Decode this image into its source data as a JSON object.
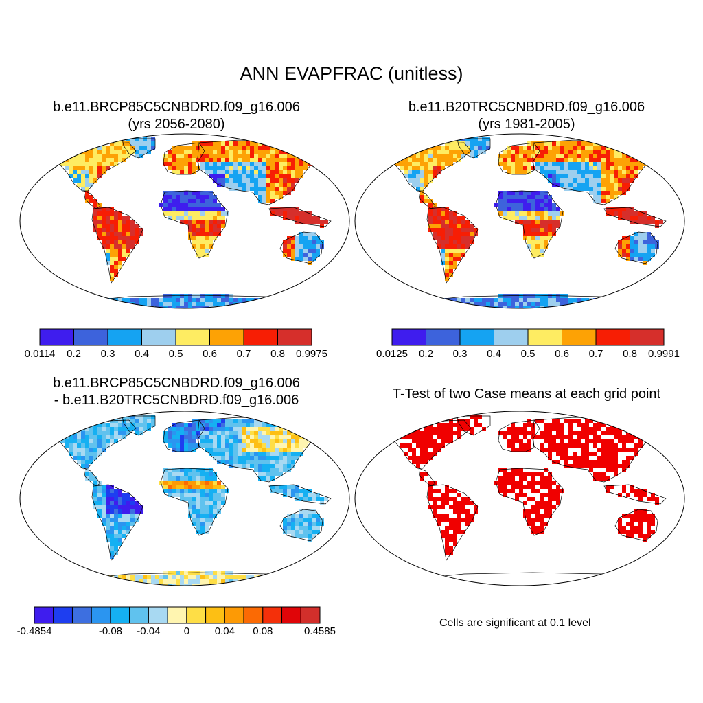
{
  "main_title": "ANN EVAPFRAC (unitless)",
  "panels": [
    {
      "id": "case1",
      "title_line1": "b.e11.BRCP85C5CNBDRD.f09_g16.006",
      "title_line2": "(yrs 2056-2080)",
      "field": "evapfrac",
      "colorbar": {
        "colors": [
          "#3f1dee",
          "#3d63dc",
          "#15a3f2",
          "#9ecfee",
          "#feec62",
          "#fda205",
          "#f71e04",
          "#d62f2b"
        ],
        "labels": [
          "0.0114",
          "0.2",
          "0.3",
          "0.4",
          "0.5",
          "0.6",
          "0.7",
          "0.8",
          "0.9975"
        ]
      }
    },
    {
      "id": "case2",
      "title_line1": "b.e11.B20TRC5CNBDRD.f09_g16.006",
      "title_line2": "(yrs 1981-2005)",
      "field": "evapfrac",
      "colorbar": {
        "colors": [
          "#3f1dee",
          "#3d63dc",
          "#15a3f2",
          "#9ecfee",
          "#feec62",
          "#fda205",
          "#f71e04",
          "#d62f2b"
        ],
        "labels": [
          "0.0125",
          "0.2",
          "0.3",
          "0.4",
          "0.5",
          "0.6",
          "0.7",
          "0.8",
          "0.9991"
        ]
      }
    },
    {
      "id": "diff",
      "title_line1": "b.e11.BRCP85C5CNBDRD.f09_g16.006",
      "title_line2": "- b.e11.B20TRC5CNBDRD.f09_g16.006",
      "field": "difference",
      "colorbar": {
        "colors": [
          "#3f1dee",
          "#1e3ef0",
          "#3d6fe0",
          "#2b95f0",
          "#15b0f2",
          "#60c2ee",
          "#a8d9f2",
          "#fff5b0",
          "#fede46",
          "#fdbf14",
          "#fd9a05",
          "#fb6a04",
          "#f4300a",
          "#e00508",
          "#d22f2b"
        ],
        "labels": [
          "-0.4854",
          "-0.08",
          "-0.04",
          "0",
          "0.04",
          "0.08",
          "0.4585"
        ],
        "label_slots": [
          0,
          4,
          6,
          8,
          10,
          12,
          15
        ]
      }
    },
    {
      "id": "ttest",
      "title_line1": "T-Test of two Case means at each grid point",
      "title_line2": "",
      "field": "significance",
      "significance_color": "#f00000",
      "note": "Cells are significant at 0.1 level"
    }
  ]
}
